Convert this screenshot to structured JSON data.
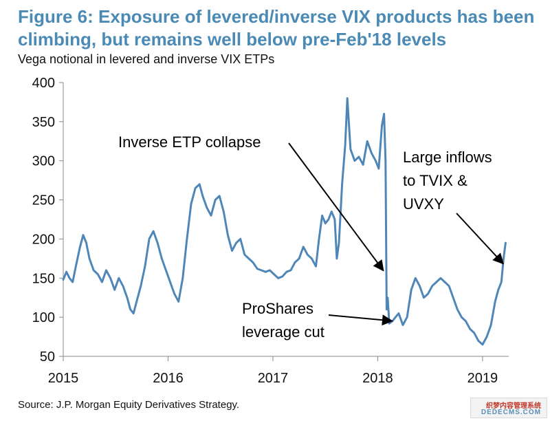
{
  "header": {
    "title": "Figure 6: Exposure of levered/inverse VIX products has been climbing, but remains well below pre-Feb'18 levels",
    "subtitle": "Vega notional in levered and inverse VIX ETPs"
  },
  "footer": {
    "source": "Source: J.P. Morgan Equity Derivatives Strategy."
  },
  "watermark": {
    "top": "织梦内容管理系统",
    "bottom": "DEDECMS.COM"
  },
  "colors": {
    "title": "#4a8ab4",
    "series": "#4f86b8",
    "text": "#111111",
    "axis": "#888888"
  },
  "chart_data": {
    "type": "line",
    "title": "Vega notional in levered and inverse VIX ETPs",
    "xlabel": "",
    "ylabel": "",
    "xlim": [
      2015.0,
      2019.25
    ],
    "ylim": [
      50,
      400
    ],
    "yticks": [
      50,
      100,
      150,
      200,
      250,
      300,
      350,
      400
    ],
    "xticks": [
      2015,
      2016,
      2017,
      2018,
      2019
    ],
    "xtick_labels": [
      "2015",
      "2016",
      "2017",
      "2018",
      "2019"
    ],
    "grid": false,
    "series": [
      {
        "name": "Vega notional",
        "x": [
          2015.0,
          2015.03,
          2015.06,
          2015.09,
          2015.12,
          2015.16,
          2015.19,
          2015.22,
          2015.25,
          2015.29,
          2015.33,
          2015.37,
          2015.41,
          2015.45,
          2015.49,
          2015.53,
          2015.57,
          2015.61,
          2015.64,
          2015.67,
          2015.7,
          2015.74,
          2015.78,
          2015.82,
          2015.86,
          2015.9,
          2015.94,
          2015.98,
          2016.02,
          2016.06,
          2016.1,
          2016.14,
          2016.18,
          2016.22,
          2016.26,
          2016.3,
          2016.33,
          2016.37,
          2016.41,
          2016.45,
          2016.49,
          2016.53,
          2016.57,
          2016.61,
          2016.65,
          2016.69,
          2016.73,
          2016.77,
          2016.81,
          2016.85,
          2016.89,
          2016.93,
          2016.97,
          2017.01,
          2017.05,
          2017.09,
          2017.13,
          2017.17,
          2017.21,
          2017.25,
          2017.29,
          2017.33,
          2017.37,
          2017.41,
          2017.44,
          2017.47,
          2017.5,
          2017.53,
          2017.56,
          2017.59,
          2017.61,
          2017.63,
          2017.66,
          2017.69,
          2017.71,
          2017.74,
          2017.78,
          2017.82,
          2017.86,
          2017.9,
          2017.94,
          2017.98,
          2018.01,
          2018.04,
          2018.06,
          2018.075,
          2018.085,
          2018.095,
          2018.11,
          2018.14,
          2018.17,
          2018.2,
          2018.24,
          2018.28,
          2018.32,
          2018.36,
          2018.4,
          2018.44,
          2018.48,
          2018.52,
          2018.56,
          2018.6,
          2018.64,
          2018.68,
          2018.72,
          2018.76,
          2018.8,
          2018.84,
          2018.88,
          2018.92,
          2018.96,
          2019.0,
          2019.04,
          2019.08,
          2019.12,
          2019.15,
          2019.18,
          2019.2,
          2019.22
        ],
        "values": [
          148,
          158,
          150,
          145,
          165,
          190,
          205,
          195,
          175,
          160,
          155,
          145,
          160,
          150,
          135,
          150,
          140,
          125,
          110,
          105,
          120,
          140,
          165,
          200,
          210,
          195,
          175,
          160,
          145,
          130,
          120,
          150,
          200,
          245,
          265,
          270,
          255,
          240,
          230,
          250,
          255,
          235,
          205,
          185,
          195,
          200,
          180,
          175,
          170,
          162,
          160,
          158,
          160,
          155,
          150,
          152,
          158,
          160,
          170,
          175,
          190,
          180,
          175,
          165,
          200,
          230,
          220,
          225,
          235,
          225,
          175,
          195,
          270,
          320,
          380,
          315,
          300,
          305,
          295,
          325,
          310,
          300,
          290,
          345,
          360,
          300,
          110,
          125,
          92,
          95,
          100,
          105,
          90,
          100,
          135,
          150,
          140,
          125,
          130,
          140,
          145,
          150,
          145,
          140,
          125,
          110,
          100,
          95,
          85,
          80,
          70,
          65,
          75,
          90,
          120,
          135,
          145,
          175,
          195
        ]
      }
    ],
    "annotations": [
      {
        "name": "inverse-etp-collapse",
        "text": "Inverse ETP collapse",
        "x": 2018.08,
        "y": 230
      },
      {
        "name": "proshares-leverage-cut",
        "text_lines": [
          "ProShares",
          "leverage cut"
        ],
        "x": 2018.15,
        "y": 97
      },
      {
        "name": "large-inflows",
        "text_lines": [
          "Large inflows",
          "to TVIX &",
          "UVXY"
        ],
        "x": 2019.21,
        "y": 172
      }
    ]
  }
}
